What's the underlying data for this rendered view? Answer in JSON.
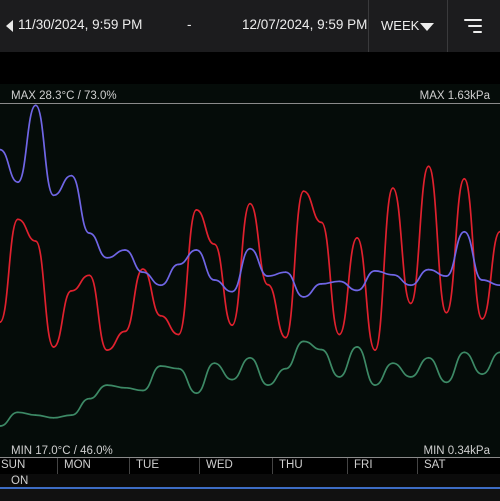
{
  "header": {
    "start": "11/30/2024, 9:59 PM",
    "separator": "-",
    "end": "12/07/2024, 9:59 PM",
    "period": "WEEK"
  },
  "icons": {
    "prev": "chevron-left-icon",
    "dropdown": "chevron-down-icon",
    "menu": "menu-lines-icon"
  },
  "labels": {
    "max_left": "MAX 28.3°C / 73.0%",
    "max_right": "MAX 1.63kPa",
    "min_left": "MIN 17.0°C / 46.0%",
    "min_right": "MIN 0.34kPa"
  },
  "days": [
    "SUN",
    "MON",
    "TUE",
    "WED",
    "THU",
    "FRI",
    "SAT"
  ],
  "status": "ON",
  "colors": {
    "temperature": "#e0212e",
    "humidity": "#7066e6",
    "vpd": "#3d8a66",
    "on_line": "#3d6cc4"
  },
  "chart_data": {
    "type": "line",
    "x": [
      0,
      0.25,
      0.5,
      0.75,
      1,
      1.25,
      1.5,
      1.75,
      2,
      2.25,
      2.5,
      2.75,
      3,
      3.25,
      3.5,
      3.75,
      4,
      4.25,
      4.5,
      4.75,
      5,
      5.25,
      5.5,
      5.75,
      6,
      6.25,
      6.5,
      6.75,
      7
    ],
    "xlabel": "",
    "ylabel": "",
    "series": [
      {
        "name": "°C",
        "unit": "°C",
        "ylim": [
          17.0,
          28.3
        ],
        "values": [
          21.3,
          24.6,
          23.9,
          20.5,
          22.3,
          22.8,
          20.4,
          21.0,
          23.0,
          21.5,
          20.9,
          24.9,
          23.8,
          21.2,
          25.1,
          22.5,
          20.8,
          25.5,
          24.5,
          20.9,
          24.0,
          20.4,
          25.6,
          21.9,
          26.3,
          21.6,
          25.9,
          21.4,
          24.2
        ]
      },
      {
        "name": "%",
        "unit": "%",
        "ylim": [
          46.0,
          73.0
        ],
        "values": [
          69.5,
          67.0,
          72.9,
          66.0,
          67.5,
          63.1,
          61.2,
          61.8,
          60.1,
          59.1,
          60.7,
          61.8,
          59.5,
          58.6,
          61.9,
          59.8,
          60.1,
          58.2,
          59.2,
          59.4,
          58.7,
          60.2,
          59.9,
          59.1,
          60.3,
          59.8,
          63.2,
          59.5,
          59.1
        ]
      },
      {
        "name": "kPa",
        "unit": "kPa",
        "ylim": [
          0.34,
          1.63
        ],
        "values": [
          0.45,
          0.5,
          0.49,
          0.48,
          0.49,
          0.55,
          0.6,
          0.59,
          0.58,
          0.67,
          0.66,
          0.57,
          0.68,
          0.62,
          0.7,
          0.6,
          0.66,
          0.76,
          0.73,
          0.63,
          0.74,
          0.6,
          0.68,
          0.63,
          0.7,
          0.61,
          0.72,
          0.64,
          0.72
        ]
      }
    ]
  }
}
